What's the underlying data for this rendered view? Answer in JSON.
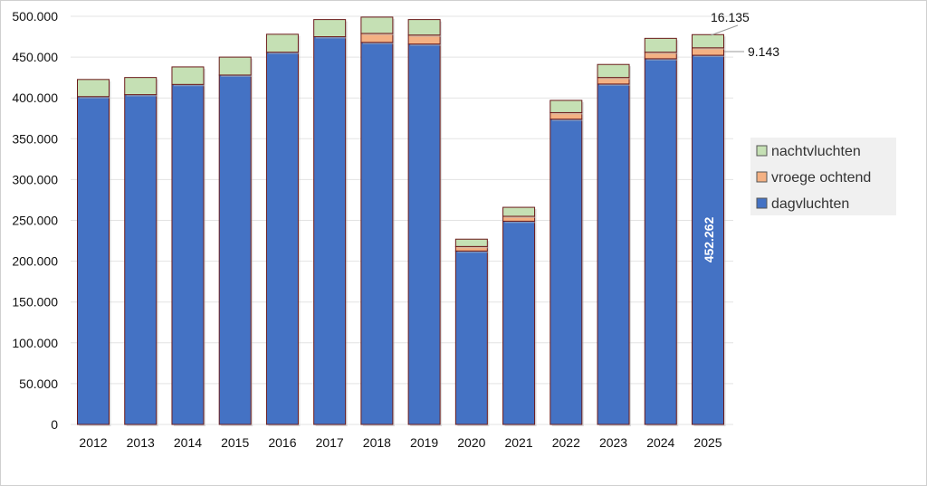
{
  "chart_data": {
    "type": "bar",
    "stacked": true,
    "title": "",
    "xlabel": "",
    "ylabel": "",
    "ylim": [
      0,
      500000
    ],
    "yticks": [
      "0",
      "50.000",
      "100.000",
      "150.000",
      "200.000",
      "250.000",
      "300.000",
      "350.000",
      "400.000",
      "450.000",
      "500.000"
    ],
    "grid": true,
    "legend_position": "right",
    "categories": [
      "2012",
      "2013",
      "2014",
      "2015",
      "2016",
      "2017",
      "2018",
      "2019",
      "2020",
      "2021",
      "2022",
      "2023",
      "2024",
      "2025"
    ],
    "series": [
      {
        "name": "dagvluchten",
        "color": "#4472C4",
        "values": [
          401600,
          404000,
          416500,
          428000,
          456000,
          475000,
          468000,
          466000,
          212500,
          249000,
          374000,
          417000,
          448000,
          452262
        ]
      },
      {
        "name": "vroege ochtend",
        "color": "#F4B183",
        "values": [
          0,
          0,
          0,
          0,
          0,
          0,
          11000,
          11000,
          5500,
          6000,
          8000,
          8000,
          8000,
          9143
        ]
      },
      {
        "name": "nachtvluchten",
        "color": "#C5E0B4",
        "values": [
          21000,
          21000,
          21500,
          22000,
          22000,
          21000,
          20000,
          19000,
          9000,
          11000,
          15000,
          16000,
          17000,
          16135
        ]
      }
    ],
    "annotations": {
      "day_2025": "452.262",
      "early_2025": "9.143",
      "night_2025": "16.135"
    }
  }
}
